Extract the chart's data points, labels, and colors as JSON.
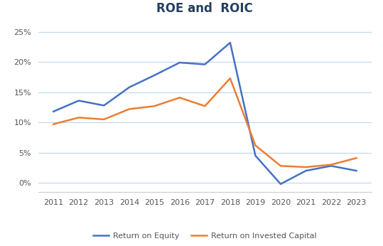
{
  "title": "ROE and  ROIC",
  "years": [
    2011,
    2012,
    2013,
    2014,
    2015,
    2016,
    2017,
    2018,
    2019,
    2020,
    2021,
    2022,
    2023
  ],
  "roe": [
    0.118,
    0.136,
    0.128,
    0.158,
    0.178,
    0.199,
    0.196,
    0.232,
    0.045,
    -0.002,
    0.02,
    0.028,
    0.02
  ],
  "roic": [
    0.097,
    0.108,
    0.105,
    0.122,
    0.127,
    0.141,
    0.127,
    0.173,
    0.062,
    0.028,
    0.026,
    0.03,
    0.041
  ],
  "roe_color": "#4472C4",
  "roic_color": "#ED7D31",
  "roe_label": "Return on Equity",
  "roic_label": "Return on Invested Capital",
  "ylim": [
    -0.015,
    0.27
  ],
  "yticks": [
    0.0,
    0.05,
    0.1,
    0.15,
    0.2,
    0.25
  ],
  "background_color": "#ffffff",
  "grid_color": "#BDD7EE",
  "title_fontsize": 12,
  "legend_fontsize": 8,
  "axis_fontsize": 8,
  "line_width": 1.8
}
